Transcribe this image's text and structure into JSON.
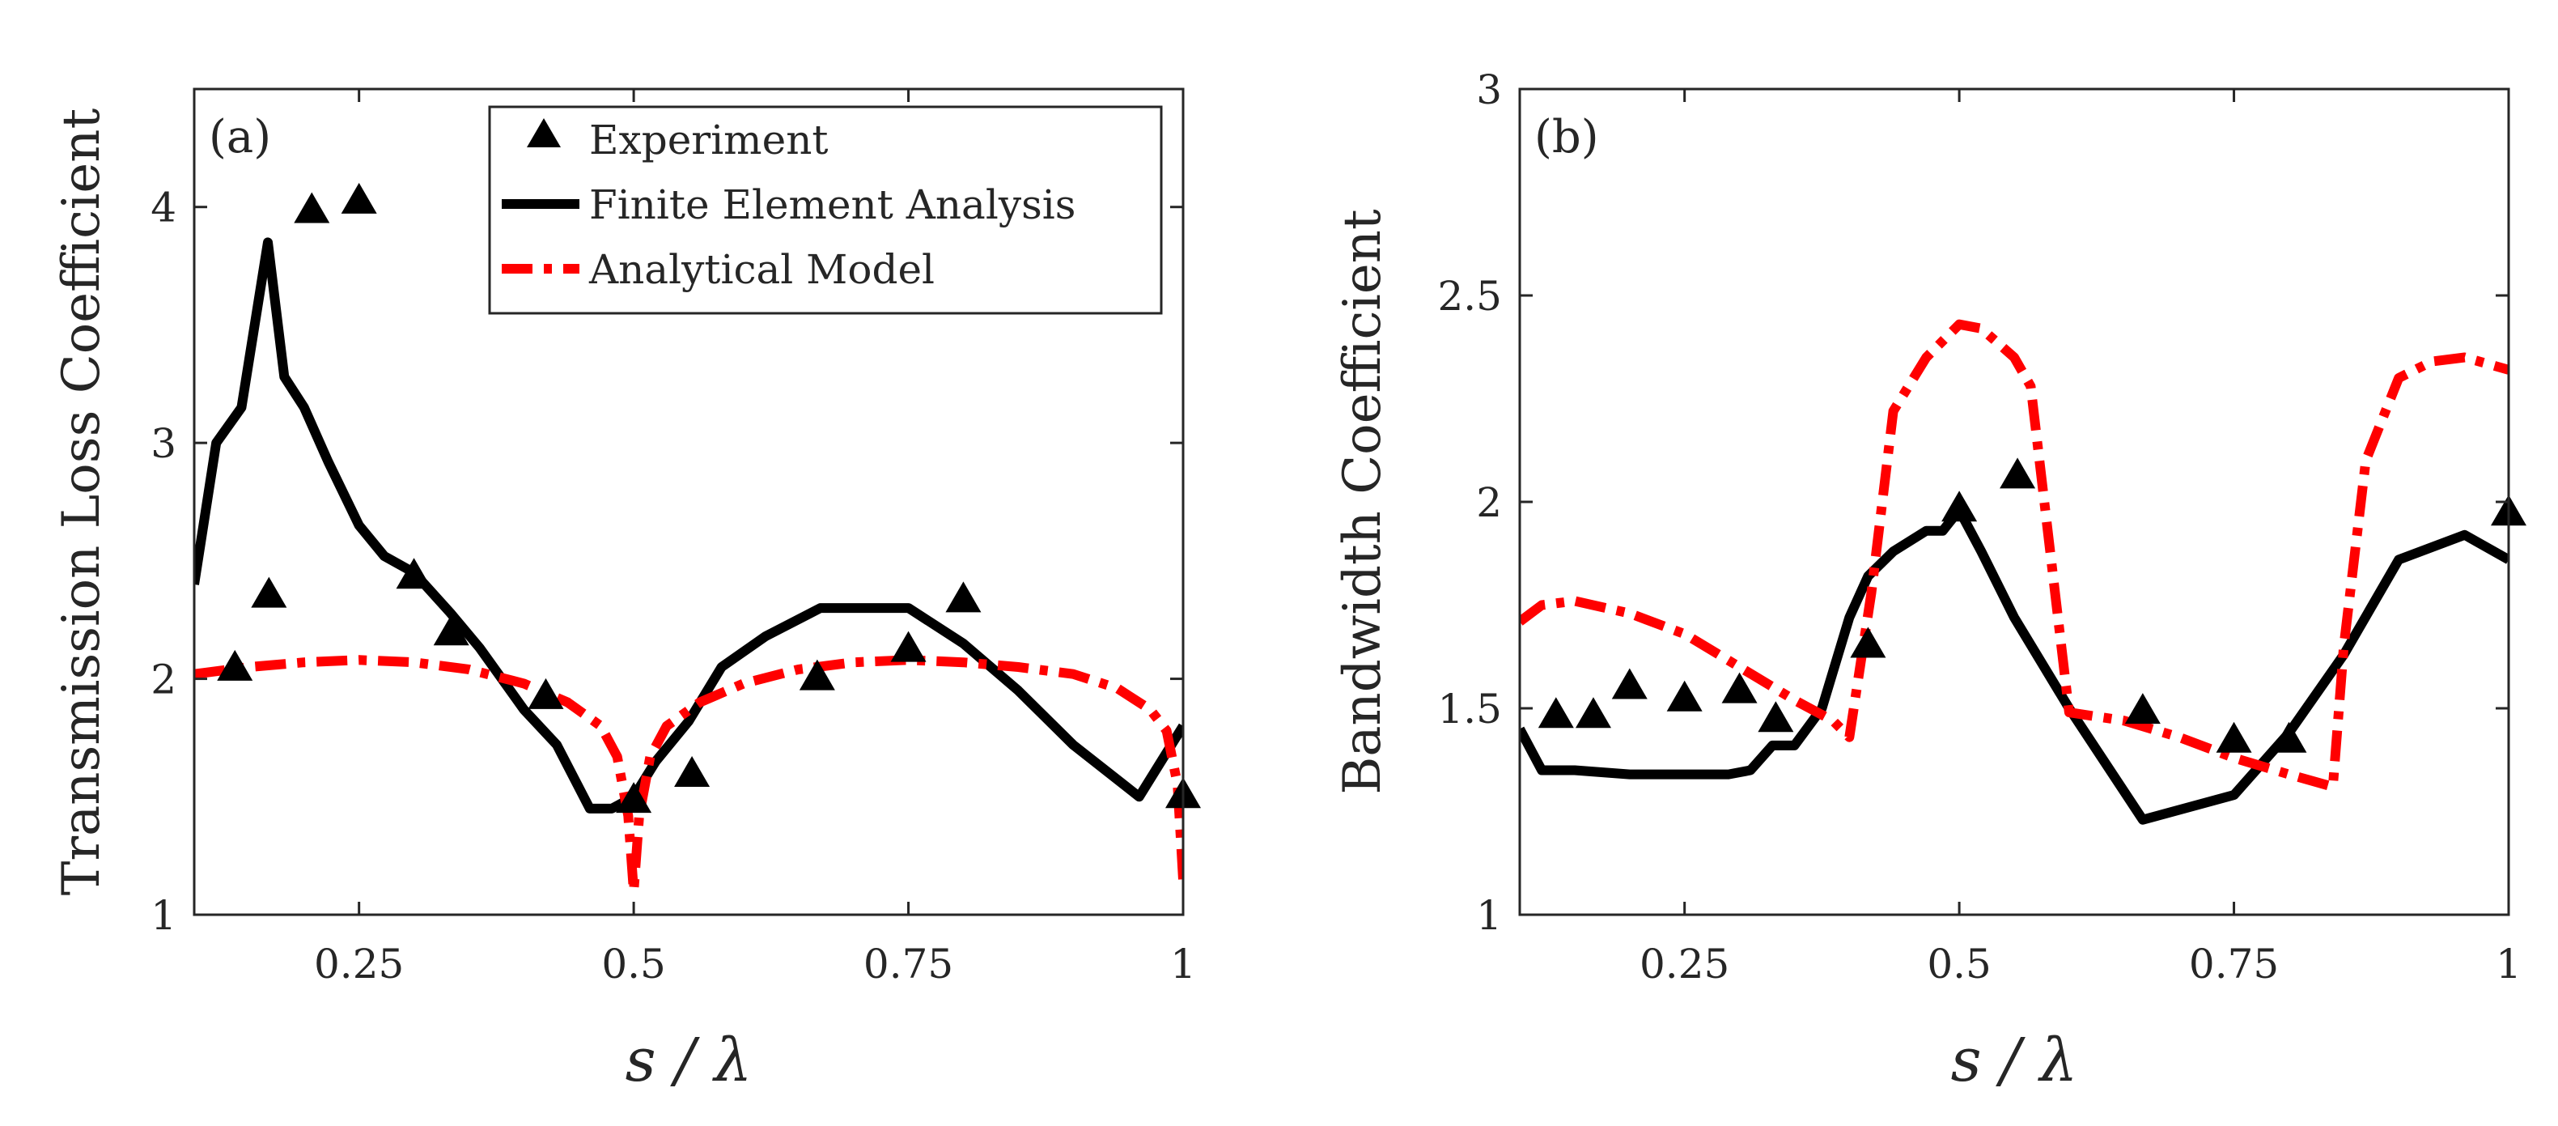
{
  "chart_data": [
    {
      "panel": "(a)",
      "type": "line",
      "xlabel": "s / λ",
      "ylabel": "Transmission Loss Coefficient",
      "xlim": [
        0.1,
        1.0
      ],
      "ylim": [
        1,
        4.5
      ],
      "xticks": [
        0.25,
        0.5,
        0.75,
        1
      ],
      "xtick_labels": [
        "0.25",
        "0.5",
        "0.75",
        "1"
      ],
      "yticks": [
        1,
        2,
        3,
        4
      ],
      "ytick_labels": [
        "1",
        "2",
        "3",
        "4"
      ],
      "legend": {
        "position": "top-center",
        "entries": [
          "Experiment",
          "Finite Element Analysis",
          "Analytical Model"
        ]
      },
      "series": [
        {
          "name": "Experiment",
          "style": "marker",
          "color": "#000000",
          "x": [
            0.137,
            0.168,
            0.207,
            0.25,
            0.3,
            0.334,
            0.42,
            0.5,
            0.553,
            0.667,
            0.75,
            0.8,
            1.0
          ],
          "y": [
            2.04,
            2.35,
            3.98,
            4.02,
            2.43,
            2.19,
            1.92,
            1.48,
            1.59,
            2.0,
            2.12,
            2.33,
            1.5
          ]
        },
        {
          "name": "Finite Element Analysis",
          "style": "solid",
          "color": "#000000",
          "x": [
            0.1,
            0.12,
            0.143,
            0.167,
            0.182,
            0.2,
            0.222,
            0.25,
            0.273,
            0.3,
            0.333,
            0.36,
            0.4,
            0.43,
            0.46,
            0.48,
            0.5,
            0.52,
            0.55,
            0.58,
            0.62,
            0.67,
            0.75,
            0.8,
            0.85,
            0.9,
            0.96,
            1.0
          ],
          "y": [
            2.4,
            3.0,
            3.15,
            3.85,
            3.28,
            3.15,
            2.92,
            2.65,
            2.52,
            2.45,
            2.28,
            2.13,
            1.87,
            1.72,
            1.45,
            1.45,
            1.5,
            1.65,
            1.82,
            2.05,
            2.18,
            2.3,
            2.3,
            2.15,
            1.95,
            1.72,
            1.5,
            1.8
          ]
        },
        {
          "name": "Analytical Model",
          "style": "dashdot",
          "color": "#ff0000",
          "x": [
            0.1,
            0.15,
            0.2,
            0.25,
            0.3,
            0.35,
            0.4,
            0.44,
            0.47,
            0.485,
            0.495,
            0.5,
            0.505,
            0.515,
            0.53,
            0.56,
            0.6,
            0.65,
            0.7,
            0.75,
            0.8,
            0.85,
            0.9,
            0.94,
            0.97,
            0.985,
            0.995,
            1.0
          ],
          "y": [
            2.02,
            2.05,
            2.07,
            2.08,
            2.07,
            2.04,
            1.98,
            1.9,
            1.8,
            1.67,
            1.42,
            1.1,
            1.42,
            1.67,
            1.8,
            1.9,
            1.98,
            2.04,
            2.07,
            2.08,
            2.07,
            2.05,
            2.02,
            1.96,
            1.87,
            1.78,
            1.55,
            1.15
          ]
        }
      ]
    },
    {
      "panel": "(b)",
      "type": "line",
      "xlabel": "s / λ",
      "ylabel": "Bandwidth Coefficient",
      "xlim": [
        0.1,
        1.0
      ],
      "ylim": [
        1,
        3
      ],
      "xticks": [
        0.25,
        0.5,
        0.75,
        1
      ],
      "xtick_labels": [
        "0.25",
        "0.5",
        "0.75",
        "1"
      ],
      "yticks": [
        1,
        1.5,
        2,
        2.5,
        3
      ],
      "ytick_labels": [
        "1",
        "1.5",
        "2",
        "2.5",
        "3"
      ],
      "series": [
        {
          "name": "Experiment",
          "style": "marker",
          "color": "#000000",
          "x": [
            0.133,
            0.167,
            0.2,
            0.25,
            0.3,
            0.333,
            0.417,
            0.5,
            0.553,
            0.667,
            0.75,
            0.8,
            1.0
          ],
          "y": [
            1.48,
            1.48,
            1.55,
            1.52,
            1.54,
            1.47,
            1.65,
            1.98,
            2.06,
            1.49,
            1.42,
            1.42,
            1.97
          ]
        },
        {
          "name": "Finite Element Analysis",
          "style": "solid",
          "color": "#000000",
          "x": [
            0.1,
            0.12,
            0.15,
            0.2,
            0.25,
            0.29,
            0.31,
            0.33,
            0.35,
            0.375,
            0.4,
            0.417,
            0.44,
            0.47,
            0.485,
            0.5,
            0.52,
            0.55,
            0.6,
            0.667,
            0.75,
            0.8,
            0.85,
            0.9,
            0.96,
            1.0
          ],
          "y": [
            1.45,
            1.35,
            1.35,
            1.34,
            1.34,
            1.34,
            1.35,
            1.41,
            1.41,
            1.5,
            1.72,
            1.82,
            1.88,
            1.93,
            1.93,
            1.98,
            1.88,
            1.72,
            1.5,
            1.23,
            1.29,
            1.44,
            1.63,
            1.86,
            1.92,
            1.86
          ]
        },
        {
          "name": "Analytical Model",
          "style": "dashdot",
          "color": "#ff0000",
          "x": [
            0.1,
            0.12,
            0.15,
            0.2,
            0.25,
            0.3,
            0.35,
            0.385,
            0.4,
            0.42,
            0.44,
            0.47,
            0.5,
            0.52,
            0.55,
            0.565,
            0.6,
            0.65,
            0.7,
            0.75,
            0.8,
            0.84,
            0.85,
            0.87,
            0.9,
            0.93,
            0.96,
            1.0
          ],
          "y": [
            1.71,
            1.75,
            1.76,
            1.73,
            1.68,
            1.6,
            1.52,
            1.47,
            1.43,
            1.78,
            2.22,
            2.35,
            2.43,
            2.42,
            2.35,
            2.28,
            1.49,
            1.47,
            1.43,
            1.38,
            1.34,
            1.31,
            1.65,
            2.1,
            2.3,
            2.34,
            2.35,
            2.32
          ]
        }
      ]
    }
  ]
}
